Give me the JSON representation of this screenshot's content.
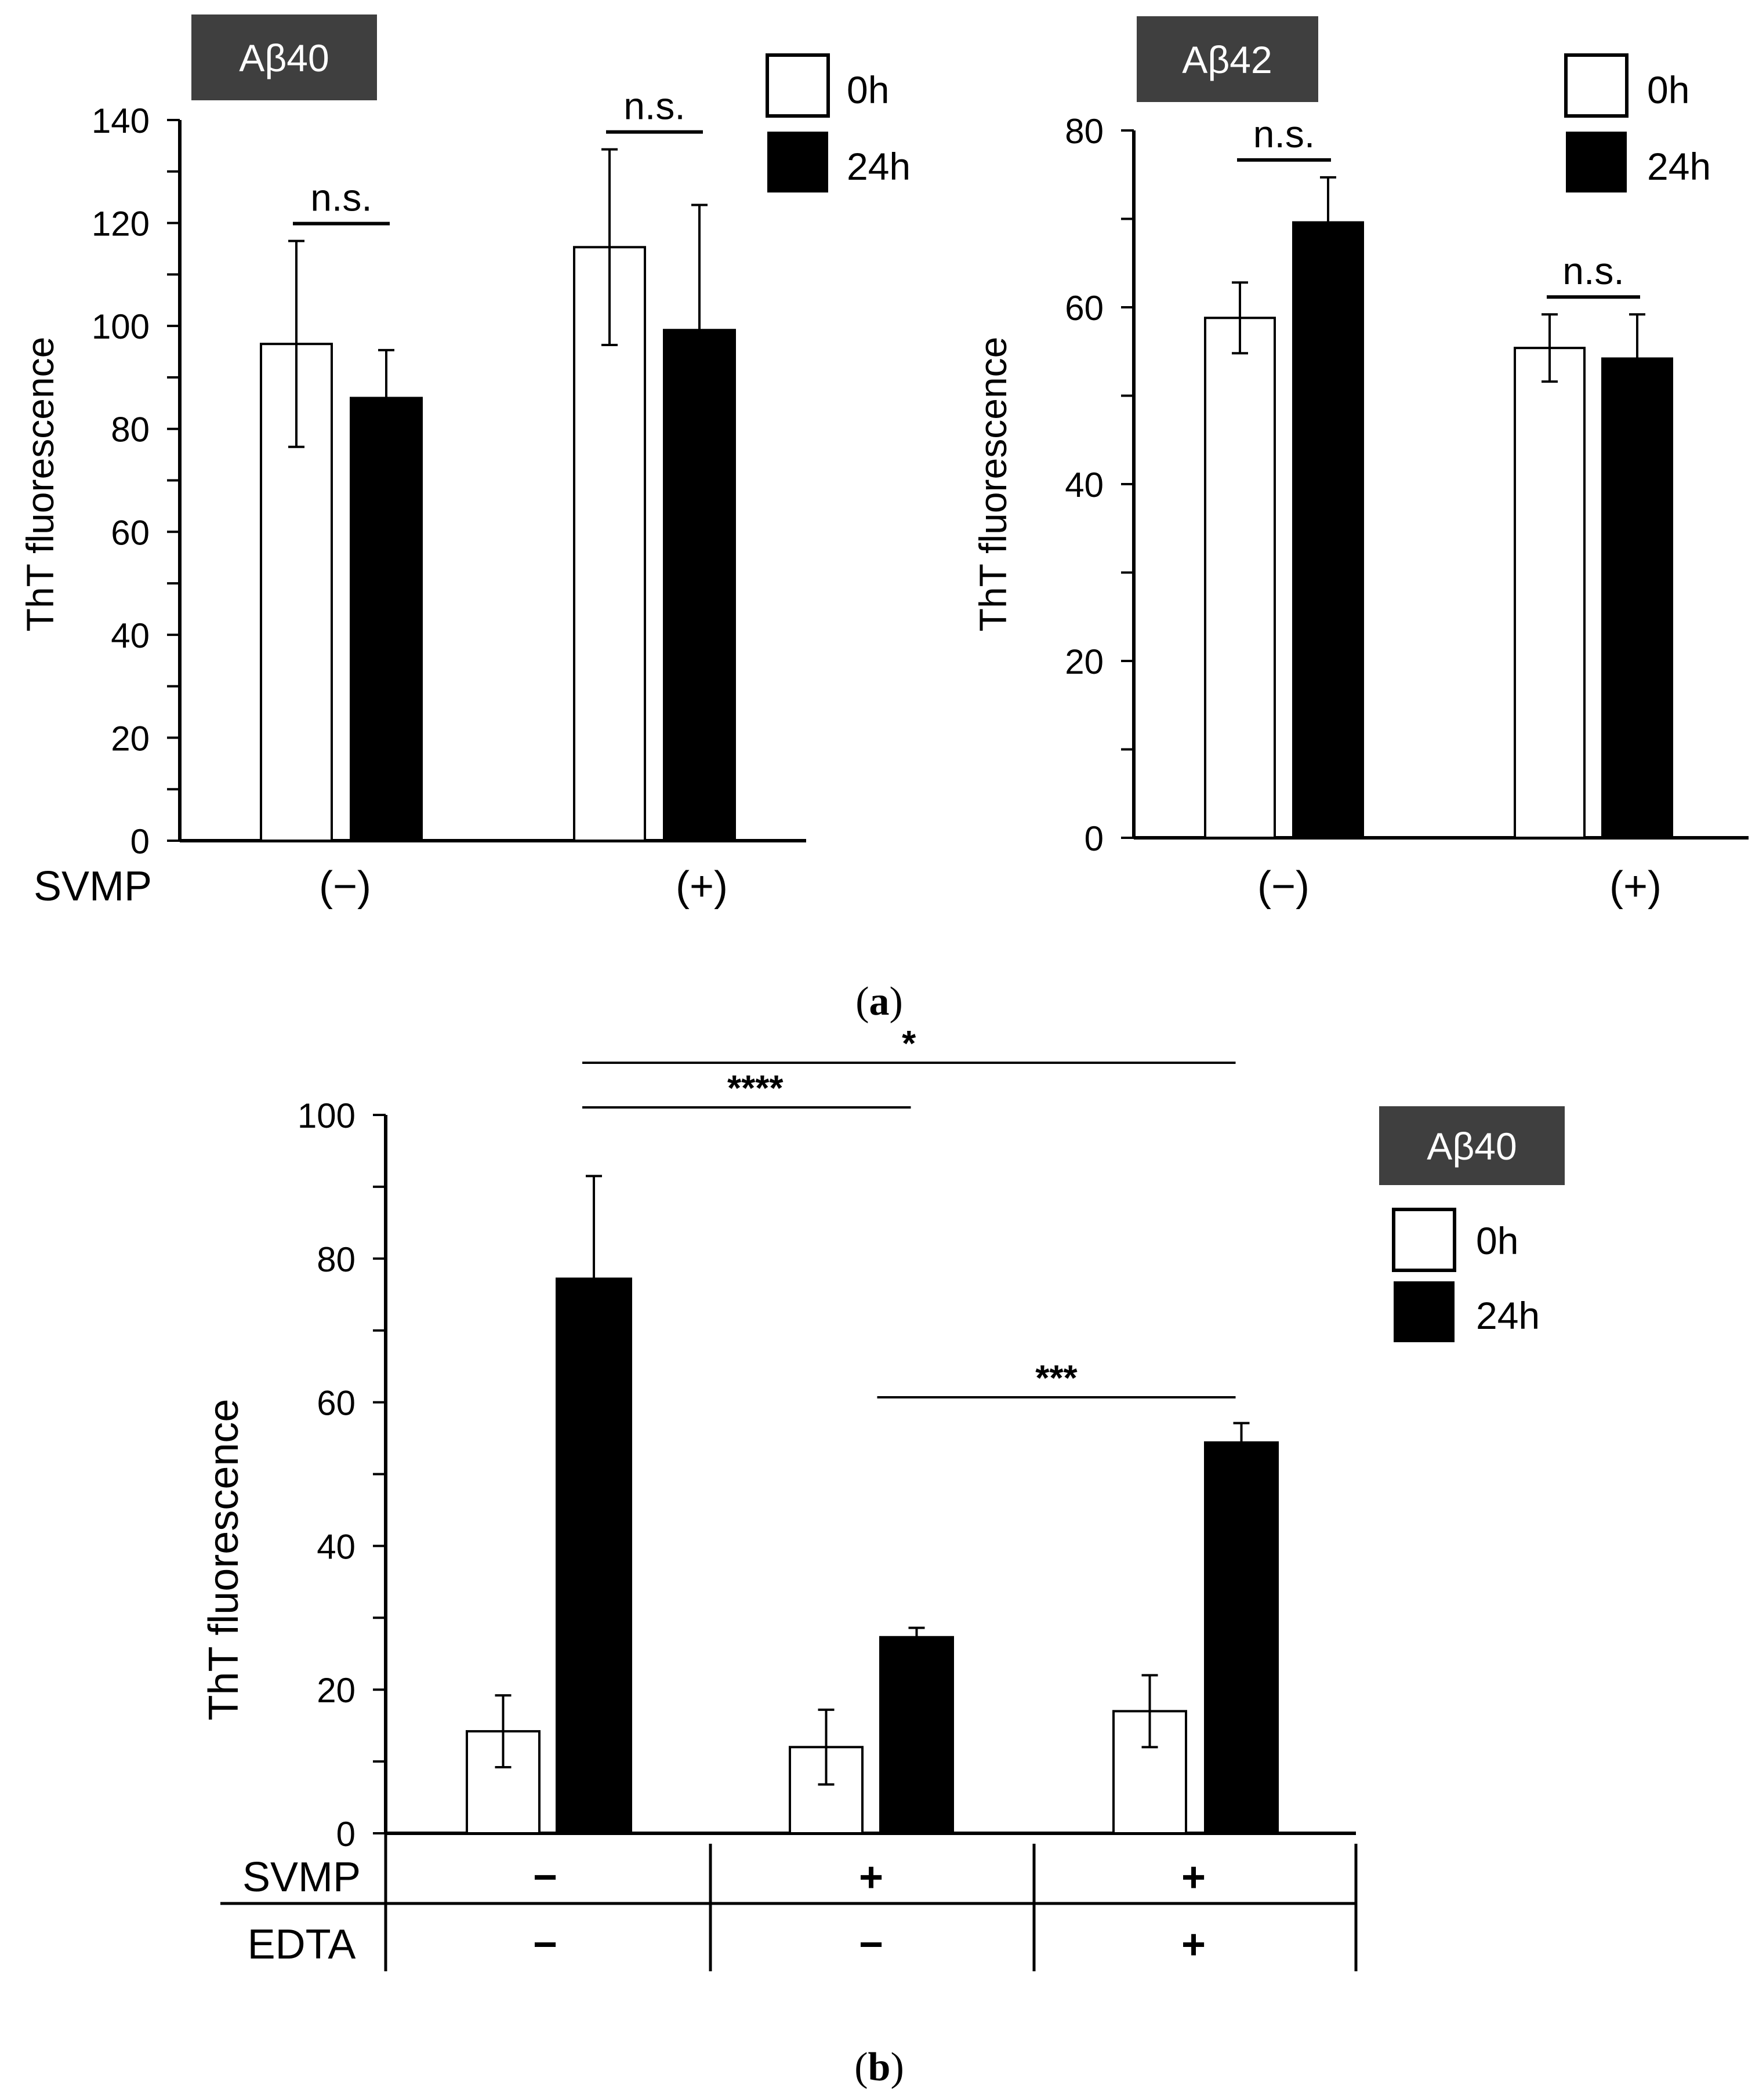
{
  "colors": {
    "background": "#ffffff",
    "bar_0h_fill": "#ffffff",
    "bar_24h_fill": "#000000",
    "axis": "#000000",
    "title_box": "#3f3f3f",
    "title_text": "#ffffff"
  },
  "panel_labels": {
    "a": "a",
    "b": "b"
  },
  "chart_data": [
    {
      "id": "a1",
      "type": "bar",
      "title": "Aβ40",
      "ylabel": "ThT fluorescence",
      "xlabel": "",
      "ylim": [
        0,
        140
      ],
      "ytick_step": 20,
      "yticks": [
        "0",
        "20",
        "40",
        "60",
        "80",
        "100",
        "120",
        "140"
      ],
      "factor_label": "SVMP",
      "categories": [
        "(−)",
        "(+)"
      ],
      "legend": [
        "0h",
        "24h"
      ],
      "legend_position": "top-right",
      "series": [
        {
          "name": "0h",
          "values": [
            96.5,
            115.3
          ],
          "errors": [
            20,
            19
          ]
        },
        {
          "name": "24h",
          "values": [
            86,
            99.2
          ],
          "errors": [
            9.3,
            24.3
          ]
        }
      ],
      "annotations": [
        {
          "group": 0,
          "text": "n.s."
        },
        {
          "group": 1,
          "text": "n.s."
        }
      ]
    },
    {
      "id": "a2",
      "type": "bar",
      "title": "Aβ42",
      "ylabel": "ThT fluorescence",
      "xlabel": "",
      "ylim": [
        0,
        80
      ],
      "ytick_step": 20,
      "yticks": [
        "0",
        "20",
        "40",
        "60",
        "80"
      ],
      "categories": [
        "(−)",
        "(+)"
      ],
      "legend": [
        "0h",
        "24h"
      ],
      "legend_position": "top-right",
      "series": [
        {
          "name": "0h",
          "values": [
            58.8,
            55.4
          ],
          "errors": [
            4,
            3.8
          ]
        },
        {
          "name": "24h",
          "values": [
            69.6,
            54.2
          ],
          "errors": [
            5.1,
            5
          ]
        }
      ],
      "annotations": [
        {
          "group": 0,
          "text": "n.s."
        },
        {
          "group": 1,
          "text": "n.s."
        }
      ]
    },
    {
      "id": "b",
      "type": "bar",
      "title": "Aβ40",
      "ylabel": "ThT fluorescence",
      "xlabel": "",
      "ylim": [
        0,
        100
      ],
      "ytick_step": 20,
      "yticks": [
        "0",
        "20",
        "40",
        "60",
        "80",
        "100"
      ],
      "conditions": [
        {
          "name": "SVMP",
          "values": [
            "−",
            "+",
            "+"
          ]
        },
        {
          "name": "EDTA",
          "values": [
            "−",
            "−",
            "+"
          ]
        }
      ],
      "legend": [
        "0h",
        "24h"
      ],
      "legend_position": "right",
      "series": [
        {
          "name": "0h",
          "values": [
            14.2,
            12,
            17
          ],
          "errors": [
            5,
            5.2,
            5
          ]
        },
        {
          "name": "24h",
          "values": [
            77.2,
            27.3,
            54.4
          ],
          "errors": [
            14.3,
            1.3,
            2.7
          ]
        }
      ],
      "significance": [
        {
          "from_group": 0,
          "to_group": 2,
          "label": "*"
        },
        {
          "from_group": 0,
          "to_group": 1,
          "label": "****"
        },
        {
          "from_group": 1,
          "to_group": 2,
          "label": "***"
        }
      ]
    }
  ]
}
